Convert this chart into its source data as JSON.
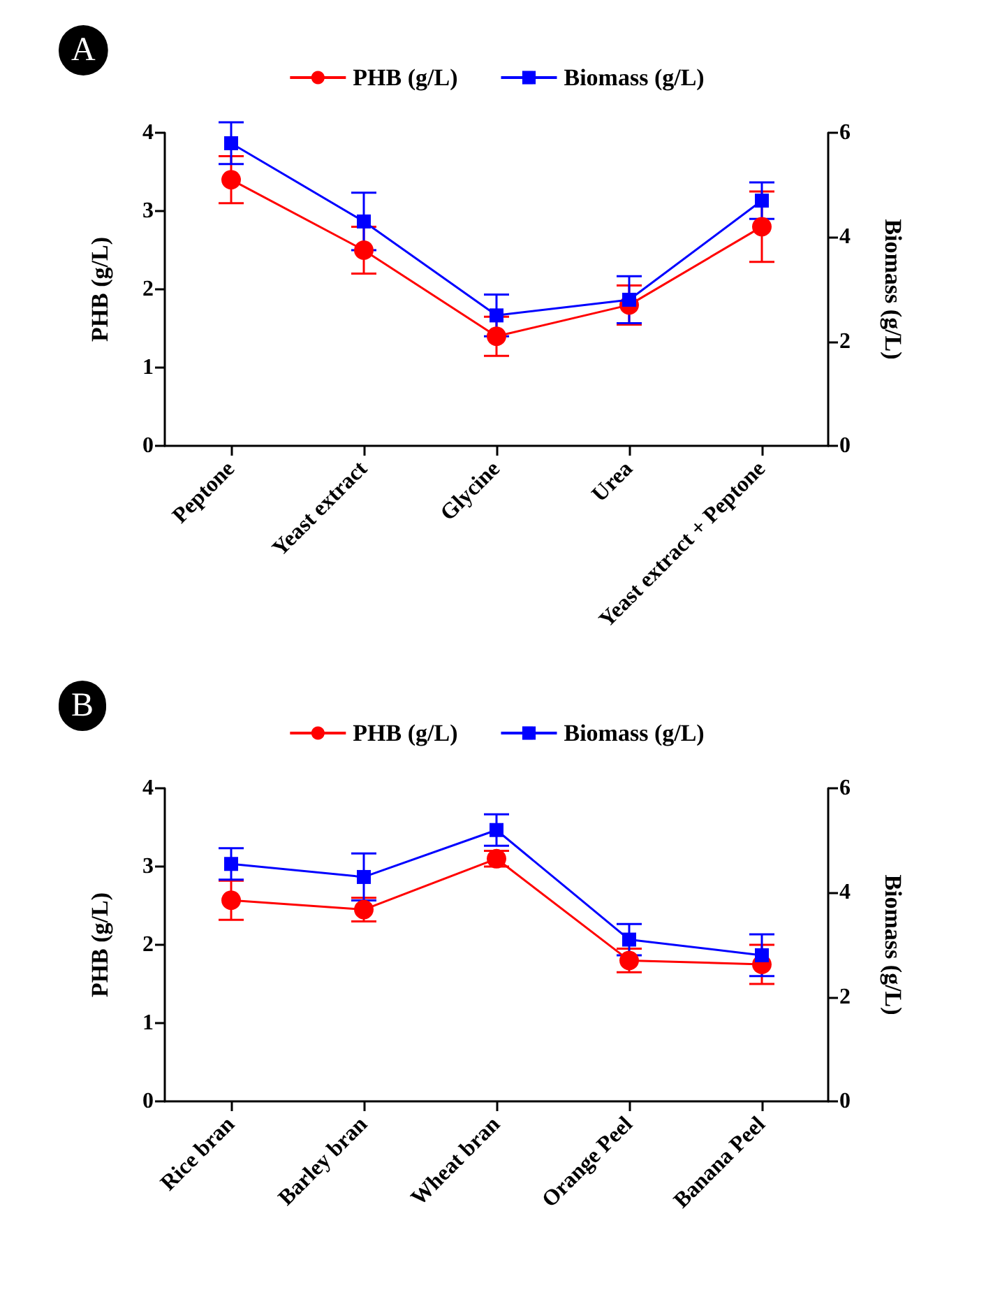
{
  "chart_data": [
    {
      "type": "line",
      "title": "A",
      "categories": [
        "Peptone",
        "Yeast extract",
        "Glycine",
        "Urea",
        "Yeast extract + Peptone"
      ],
      "ylabel": "PHB (g/L)",
      "y2label": "Biomass (g/L)",
      "ylim": [
        0,
        4
      ],
      "yticks": [
        0,
        1,
        2,
        3,
        4
      ],
      "y2lim": [
        0,
        6
      ],
      "y2ticks": [
        0,
        2,
        4,
        6
      ],
      "legend": "top",
      "grid": false,
      "line_style": "solid",
      "series": [
        {
          "name": "PHB (g/L)",
          "color": "#ff0000",
          "marker": "circle",
          "values": [
            3.4,
            2.5,
            1.4,
            1.8,
            2.8
          ],
          "errors": [
            0.3,
            0.3,
            0.25,
            0.25,
            0.45
          ]
        },
        {
          "name": "Biomass (g/L)",
          "color": "#0000ff",
          "marker": "square",
          "axis": "y2",
          "values": [
            5.8,
            4.3,
            2.5,
            2.8,
            4.7
          ],
          "errors": [
            0.4,
            0.55,
            0.4,
            0.45,
            0.35
          ]
        }
      ]
    },
    {
      "type": "line",
      "title": "B",
      "categories": [
        "Rice bran",
        "Barley bran",
        "Wheat bran",
        "Orange Peel",
        "Banana Peel"
      ],
      "ylabel": "PHB (g/L)",
      "y2label": "Biomass (g/L)",
      "ylim": [
        0,
        4
      ],
      "yticks": [
        0,
        1,
        2,
        3,
        4
      ],
      "y2lim": [
        0,
        6
      ],
      "y2ticks": [
        0,
        2,
        4,
        6
      ],
      "legend": "top",
      "grid": false,
      "line_style": "solid",
      "series": [
        {
          "name": "PHB (g/L)",
          "color": "#ff0000",
          "marker": "circle",
          "values": [
            2.57,
            2.45,
            3.1,
            1.8,
            1.75
          ],
          "errors": [
            0.25,
            0.15,
            0.1,
            0.15,
            0.25
          ]
        },
        {
          "name": "Biomass (g/L)",
          "color": "#0000ff",
          "marker": "square",
          "axis": "y2",
          "values": [
            4.55,
            4.3,
            5.2,
            3.1,
            2.8
          ],
          "errors": [
            0.3,
            0.45,
            0.3,
            0.3,
            0.4
          ]
        }
      ]
    }
  ]
}
